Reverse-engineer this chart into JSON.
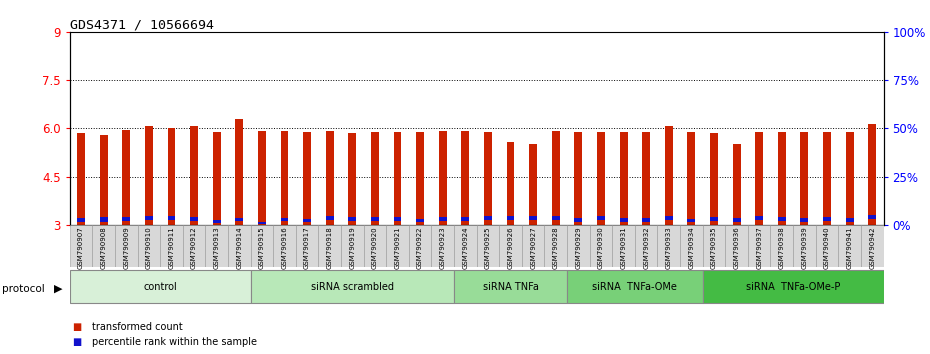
{
  "title": "GDS4371 / 10566694",
  "samples": [
    "GSM790907",
    "GSM790908",
    "GSM790909",
    "GSM790910",
    "GSM790911",
    "GSM790912",
    "GSM790913",
    "GSM790914",
    "GSM790915",
    "GSM790916",
    "GSM790917",
    "GSM790918",
    "GSM790919",
    "GSM790920",
    "GSM790921",
    "GSM790922",
    "GSM790923",
    "GSM790924",
    "GSM790925",
    "GSM790926",
    "GSM790927",
    "GSM790928",
    "GSM790929",
    "GSM790930",
    "GSM790931",
    "GSM790932",
    "GSM790933",
    "GSM790934",
    "GSM790935",
    "GSM790936",
    "GSM790937",
    "GSM790938",
    "GSM790939",
    "GSM790940",
    "GSM790941",
    "GSM790942"
  ],
  "red_tops": [
    5.85,
    5.78,
    5.95,
    6.07,
    6.02,
    6.08,
    5.9,
    6.28,
    5.92,
    5.92,
    5.9,
    5.92,
    5.85,
    5.88,
    5.9,
    5.9,
    5.92,
    5.92,
    5.9,
    5.58,
    5.52,
    5.92,
    5.88,
    5.9,
    5.88,
    5.9,
    6.07,
    5.88,
    5.85,
    5.52,
    5.9,
    5.88,
    5.88,
    5.88,
    5.9,
    6.15
  ],
  "blue_bottoms": [
    3.1,
    3.1,
    3.13,
    3.15,
    3.15,
    3.12,
    3.05,
    3.12,
    3.02,
    3.12,
    3.08,
    3.15,
    3.12,
    3.12,
    3.13,
    3.1,
    3.12,
    3.12,
    3.15,
    3.15,
    3.15,
    3.15,
    3.1,
    3.15,
    3.1,
    3.1,
    3.15,
    3.08,
    3.12,
    3.1,
    3.15,
    3.12,
    3.1,
    3.12,
    3.1,
    3.18
  ],
  "blue_tops": [
    3.22,
    3.23,
    3.25,
    3.27,
    3.27,
    3.24,
    3.14,
    3.22,
    3.09,
    3.22,
    3.17,
    3.27,
    3.23,
    3.23,
    3.24,
    3.19,
    3.23,
    3.23,
    3.27,
    3.27,
    3.27,
    3.27,
    3.21,
    3.27,
    3.21,
    3.21,
    3.27,
    3.18,
    3.23,
    3.21,
    3.27,
    3.23,
    3.21,
    3.23,
    3.21,
    3.3
  ],
  "groups": [
    {
      "label": "control",
      "start": 0,
      "end": 8,
      "color": "#d8f0d8"
    },
    {
      "label": "siRNA scrambled",
      "start": 8,
      "end": 17,
      "color": "#b8e8b8"
    },
    {
      "label": "siRNA TNFa",
      "start": 17,
      "end": 22,
      "color": "#98dc98"
    },
    {
      "label": "siRNA  TNFa-OMe",
      "start": 22,
      "end": 28,
      "color": "#78d078"
    },
    {
      "label": "siRNA  TNFa-OMe-P",
      "start": 28,
      "end": 36,
      "color": "#44bb44"
    }
  ],
  "y_min": 3.0,
  "y_max": 9.0,
  "y_ticks_left": [
    3.0,
    4.5,
    6.0,
    7.5,
    9.0
  ],
  "y_ticks_right": [
    0,
    25,
    50,
    75,
    100
  ],
  "dotted_lines": [
    4.5,
    6.0,
    7.5
  ],
  "bar_color_red": "#cc2200",
  "bar_color_blue": "#1111cc",
  "bar_width": 0.35,
  "legend_items": [
    {
      "color": "#cc2200",
      "label": "transformed count"
    },
    {
      "color": "#1111cc",
      "label": "percentile rank within the sample"
    }
  ]
}
